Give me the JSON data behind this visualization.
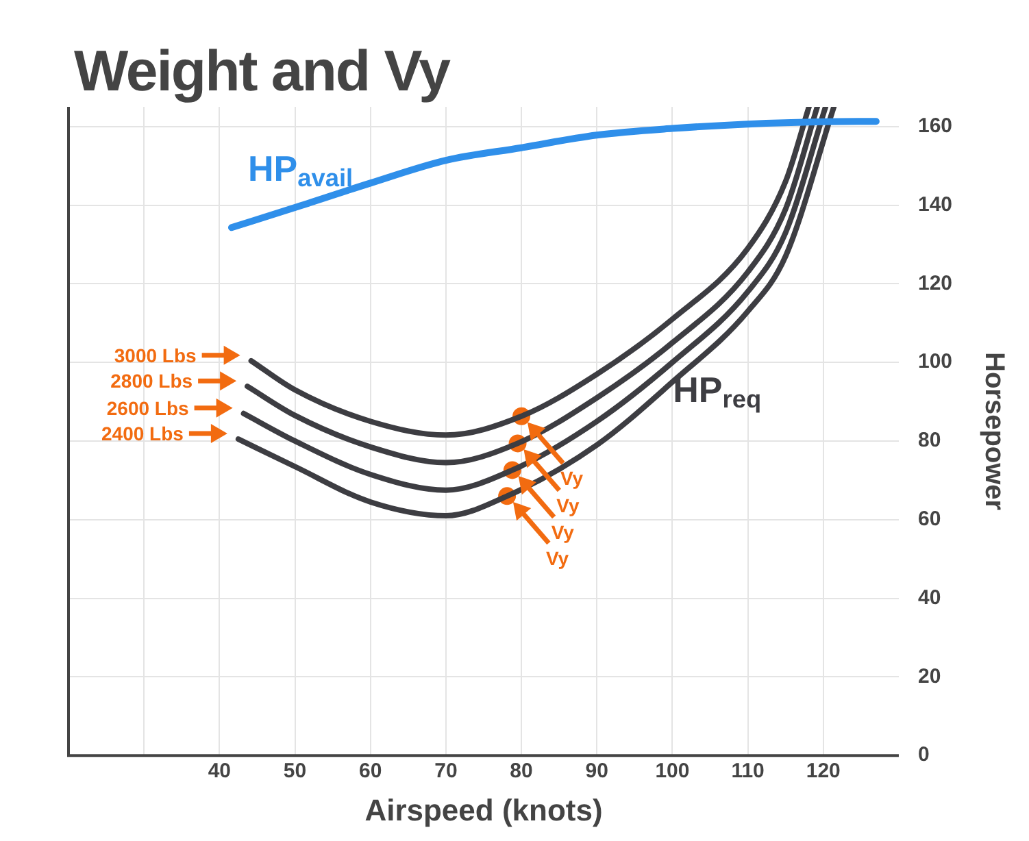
{
  "chart_data": {
    "type": "line",
    "title": "Weight and Vy",
    "xlabel": "Airspeed (knots)",
    "ylabel": "Horsepower",
    "xlim": [
      20,
      130
    ],
    "xticks": [
      {
        "value": 30,
        "label": null
      },
      40,
      50,
      60,
      70,
      80,
      90,
      100,
      110,
      120
    ],
    "ylim": [
      0,
      165
    ],
    "yticks": [
      0,
      20,
      40,
      60,
      80,
      100,
      120,
      140,
      160
    ],
    "grid": true,
    "legend": false,
    "marker": "none",
    "series": [
      {
        "name": "HP$_{avail}$",
        "color": "#2f8fea",
        "x": [
          41.6,
          50,
          60,
          70,
          80,
          90,
          100,
          110,
          120,
          127
        ],
        "values": [
          134.3,
          139.4,
          145.6,
          151.4,
          154.6,
          157.8,
          159.5,
          160.6,
          161.2,
          161.3
        ]
      },
      {
        "name": "3000 Lbs",
        "color": "#3d3d42",
        "x": [
          44.2,
          50,
          60,
          70,
          80,
          90,
          100,
          110,
          115,
          118.1
        ],
        "values": [
          100.4,
          93,
          85,
          81.5,
          86.3,
          97,
          111,
          129,
          146,
          165
        ]
      },
      {
        "name": "2800 Lbs",
        "color": "#3d3d42",
        "x": [
          43.7,
          50,
          60,
          70,
          79.5,
          90,
          100,
          110,
          115,
          119.2
        ],
        "values": [
          93.9,
          86.5,
          78.5,
          74.5,
          79.4,
          91,
          105,
          123,
          139,
          165
        ]
      },
      {
        "name": "2600 Lbs",
        "color": "#3d3d42",
        "x": [
          43.2,
          50,
          60,
          70,
          78.8,
          90,
          100,
          110,
          115,
          120.3
        ],
        "values": [
          87,
          80,
          71.5,
          67.5,
          72.6,
          85,
          100,
          118,
          133,
          165
        ]
      },
      {
        "name": "2400 Lbs",
        "color": "#3d3d42",
        "x": [
          42.5,
          50,
          60,
          70,
          78.1,
          90,
          100,
          110,
          115,
          121.4
        ],
        "values": [
          80.5,
          73.5,
          64.5,
          61,
          66,
          79,
          95,
          113,
          127,
          165
        ]
      },
      {
        "type": "scatter",
        "marker": "circle",
        "color": "#f26b10",
        "x": [
          80,
          79.5,
          78.8,
          78.1
        ],
        "values": [
          86.3,
          79.4,
          72.6,
          66
        ]
      }
    ],
    "annotations": [
      "HP$_{req}$",
      {
        "text": "Vy",
        "x": 80.8,
        "y": 84.8
      },
      {
        "text": "Vy",
        "x": 80.3,
        "y": 77.9
      },
      {
        "text": "Vy",
        "x": 79.6,
        "y": 71.1
      },
      {
        "text": "Vy",
        "x": 78.9,
        "y": 64.5
      }
    ]
  }
}
